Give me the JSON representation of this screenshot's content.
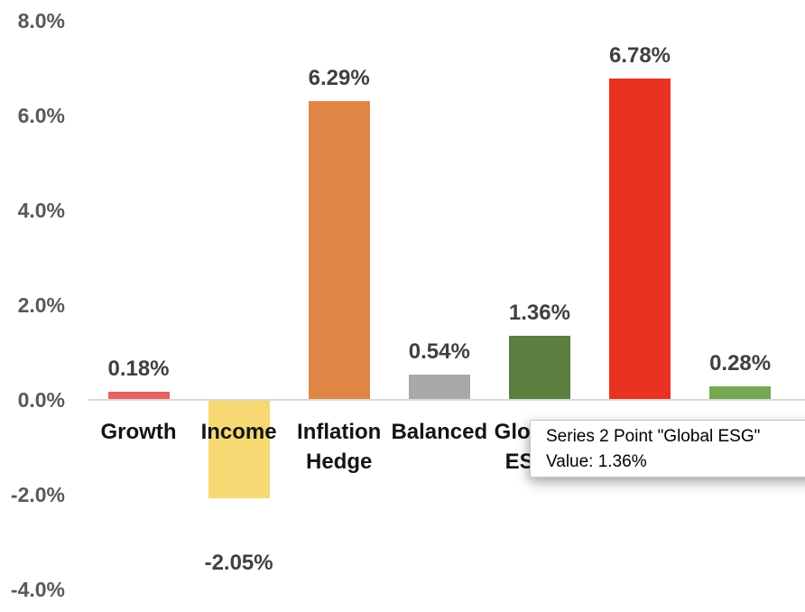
{
  "chart_data": {
    "type": "bar",
    "title": "",
    "xlabel": "",
    "ylabel": "",
    "categories": [
      "Growth",
      "Income",
      "Inflation Hedge",
      "Balanced",
      "Global ESG",
      null,
      null
    ],
    "category_labels": [
      "Growth",
      "Income",
      "Inflation\nHedge",
      "Balanced",
      "Global\nESG",
      "",
      ""
    ],
    "values": [
      0.18,
      -2.05,
      6.29,
      0.54,
      1.36,
      6.78,
      0.28
    ],
    "data_labels": [
      "0.18%",
      "-2.05%",
      "6.29%",
      "0.54%",
      "1.36%",
      "6.78%",
      "0.28%"
    ],
    "bar_colors": [
      "#E96160",
      "#F6D973",
      "#DF8646",
      "#A9A9A9",
      "#5B7F3E",
      "#EA3223",
      "#75A850"
    ],
    "y_tick_labels": [
      "8.0%",
      "6.0%",
      "4.0%",
      "2.0%",
      "0.0%",
      "-2.0%",
      "-4.0%"
    ],
    "y_tick_values": [
      8,
      6,
      4,
      2,
      0,
      -2,
      -4
    ],
    "ylim": [
      -4,
      8
    ],
    "grid": false,
    "legend": false
  },
  "tooltip": {
    "line1": "Series 2 Point \"Global ESG\"",
    "line2": "Value: 1.36%",
    "series_name": "Series 2",
    "point_name": "Global ESG",
    "value": "1.36%"
  },
  "colors": {
    "axis_line": "#D9D9D9",
    "y_tick_text": "#595959",
    "data_label_text": "#404040",
    "category_text": "#141414",
    "tooltip_bg": "#FFFFFF",
    "tooltip_border": "#C6C6C6"
  }
}
